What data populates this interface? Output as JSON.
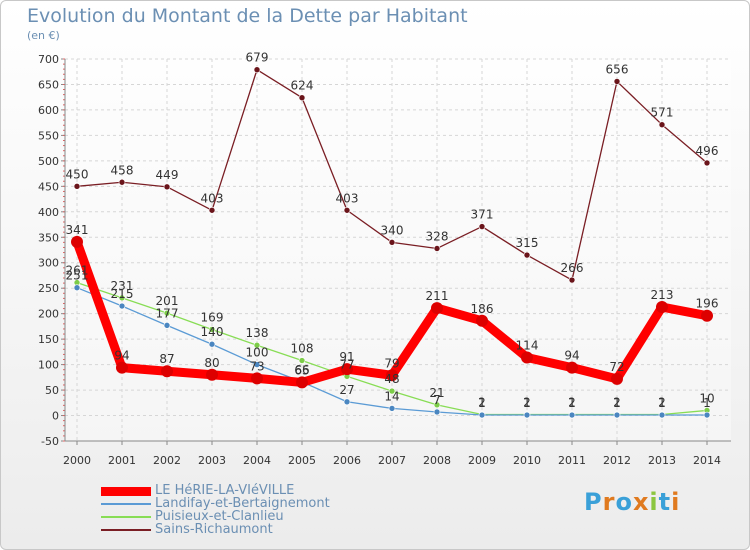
{
  "title": "Evolution du Montant de la Dette par Habitant",
  "unit": "(en €)",
  "logo": "Proxiti",
  "chart_data": {
    "type": "line",
    "title": "Evolution du Montant de la Dette par Habitant",
    "ylabel": "(en €)",
    "ylim": [
      -50,
      700
    ],
    "yticks": [
      -50,
      0,
      50,
      100,
      150,
      200,
      250,
      300,
      350,
      400,
      450,
      500,
      550,
      600,
      650,
      700
    ],
    "grid": true,
    "legend": "bottom-left",
    "x": [
      "2000",
      "2001",
      "2002",
      "2003",
      "2004",
      "2005",
      "2006",
      "2007",
      "2008",
      "2009",
      "2010",
      "2011",
      "2012",
      "2013",
      "2014"
    ],
    "series": [
      {
        "name": "LE HéRIE-LA-VIéVILLE",
        "color": "#ff0000",
        "values": [
          341,
          94,
          87,
          80,
          73,
          65,
          91,
          79,
          211,
          186,
          114,
          94,
          72,
          213,
          196
        ]
      },
      {
        "name": "Landifay-et-Bertaignemont",
        "color": "#5b9bd5",
        "values": [
          251,
          215,
          177,
          140,
          100,
          66,
          27,
          14,
          7,
          1,
          1,
          1,
          1,
          1,
          1
        ]
      },
      {
        "name": "Puisieux-et-Clanlieu",
        "color": "#88dd55",
        "values": [
          261,
          231,
          201,
          169,
          138,
          108,
          77,
          48,
          21,
          2,
          2,
          2,
          2,
          2,
          10
        ]
      },
      {
        "name": "Sains-Richaumont",
        "color": "#7a1e24",
        "values": [
          450,
          458,
          449,
          403,
          679,
          624,
          403,
          340,
          328,
          371,
          315,
          266,
          656,
          571,
          496
        ]
      }
    ],
    "point_labels": [
      [
        "341",
        "94",
        "87",
        "80",
        "73",
        "65",
        "91",
        "79",
        "211",
        "186",
        "114",
        "94",
        "72",
        "213",
        "196"
      ],
      [
        "251",
        "215",
        "177",
        "140",
        "100",
        "66",
        "27",
        "14",
        "7",
        "1",
        "1",
        "1",
        "1",
        "1",
        "1"
      ],
      [
        "261",
        "231",
        "201",
        "169",
        "138",
        "108",
        "77",
        "48",
        "21",
        "2",
        "2",
        "2",
        "2",
        "2",
        "10"
      ],
      [
        "450",
        "458",
        "449",
        "403",
        "679",
        "624",
        "403",
        "340",
        "328",
        "371",
        "315",
        "266",
        "656",
        "571",
        "496"
      ]
    ]
  }
}
